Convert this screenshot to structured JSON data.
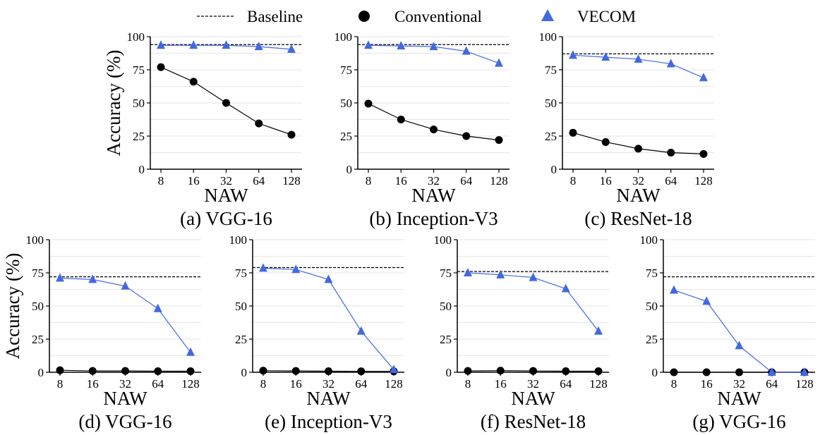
{
  "legend": {
    "baseline": "Baseline",
    "conventional": "Conventional",
    "vecom": "VECOM"
  },
  "colors": {
    "vecom": "#4169e1",
    "conventional": "#000000",
    "baseline": "#000000",
    "grid": "#e6e6e6"
  },
  "chart_data": [
    {
      "type": "line",
      "caption": "(a) VGG-16",
      "xlabel": "NAW",
      "ylabel": "Accuracy (%)",
      "categories": [
        "8",
        "16",
        "32",
        "64",
        "128"
      ],
      "yticks": [
        "0",
        "25",
        "50",
        "75",
        "100"
      ],
      "ylim": [
        0,
        100
      ],
      "baseline": 94,
      "series": [
        {
          "name": "Conventional",
          "values": [
            77,
            66,
            50,
            34.5,
            26
          ]
        },
        {
          "name": "VECOM",
          "values": [
            93.5,
            93.5,
            93.5,
            92.5,
            90.5
          ]
        }
      ]
    },
    {
      "type": "line",
      "caption": "(b) Inception-V3",
      "xlabel": "NAW",
      "ylabel": "",
      "categories": [
        "8",
        "16",
        "32",
        "64",
        "128"
      ],
      "yticks": [
        "0",
        "25",
        "50",
        "75",
        "100"
      ],
      "ylim": [
        0,
        100
      ],
      "baseline": 94,
      "series": [
        {
          "name": "Conventional",
          "values": [
            49.5,
            37.5,
            30,
            25,
            22
          ]
        },
        {
          "name": "VECOM",
          "values": [
            93.5,
            93,
            92.5,
            89,
            80
          ]
        }
      ]
    },
    {
      "type": "line",
      "caption": "(c) ResNet-18",
      "xlabel": "NAW",
      "ylabel": "",
      "categories": [
        "8",
        "16",
        "32",
        "64",
        "128"
      ],
      "yticks": [
        "0",
        "25",
        "50",
        "75",
        "100"
      ],
      "ylim": [
        0,
        100
      ],
      "baseline": 87,
      "series": [
        {
          "name": "Conventional",
          "values": [
            27.5,
            20.5,
            15.5,
            12.5,
            11.5
          ]
        },
        {
          "name": "VECOM",
          "values": [
            86,
            84.5,
            83,
            79.5,
            69
          ]
        }
      ]
    },
    {
      "type": "line",
      "caption": "(d) VGG-16",
      "xlabel": "NAW",
      "ylabel": "Accuracy (%)",
      "categories": [
        "8",
        "16",
        "32",
        "64",
        "128"
      ],
      "yticks": [
        "0",
        "25",
        "50",
        "75",
        "100"
      ],
      "ylim": [
        0,
        100
      ],
      "baseline": 72,
      "series": [
        {
          "name": "Conventional",
          "values": [
            1.5,
            1,
            1,
            0.8,
            0.8
          ]
        },
        {
          "name": "VECOM",
          "values": [
            71,
            70,
            65,
            48,
            15
          ]
        }
      ]
    },
    {
      "type": "line",
      "caption": "(e) Inception-V3",
      "xlabel": "NAW",
      "ylabel": "",
      "categories": [
        "8",
        "16",
        "32",
        "64",
        "128"
      ],
      "yticks": [
        "0",
        "25",
        "50",
        "75",
        "100"
      ],
      "ylim": [
        0,
        100
      ],
      "baseline": 79,
      "series": [
        {
          "name": "Conventional",
          "values": [
            1.2,
            1,
            0.8,
            0.7,
            0.7
          ]
        },
        {
          "name": "VECOM",
          "values": [
            78.5,
            77.5,
            70,
            31,
            2
          ]
        }
      ]
    },
    {
      "type": "line",
      "caption": "(f) ResNet-18",
      "xlabel": "NAW",
      "ylabel": "",
      "categories": [
        "8",
        "16",
        "32",
        "64",
        "128"
      ],
      "yticks": [
        "0",
        "25",
        "50",
        "75",
        "100"
      ],
      "ylim": [
        0,
        100
      ],
      "baseline": 76,
      "series": [
        {
          "name": "Conventional",
          "values": [
            1,
            1.2,
            1,
            0.8,
            0.8
          ]
        },
        {
          "name": "VECOM",
          "values": [
            75,
            73.5,
            71.5,
            63,
            31
          ]
        }
      ]
    },
    {
      "type": "line",
      "caption": "(g) VGG-16",
      "xlabel": "NAW",
      "ylabel": "",
      "categories": [
        "8",
        "16",
        "32",
        "64",
        "128"
      ],
      "yticks": [
        "0",
        "25",
        "50",
        "75",
        "100"
      ],
      "ylim": [
        0,
        100
      ],
      "baseline": 72,
      "series": [
        {
          "name": "Conventional",
          "values": [
            0,
            0,
            0,
            0,
            0
          ]
        },
        {
          "name": "VECOM",
          "values": [
            62,
            53.5,
            20,
            0,
            0
          ]
        }
      ]
    }
  ]
}
